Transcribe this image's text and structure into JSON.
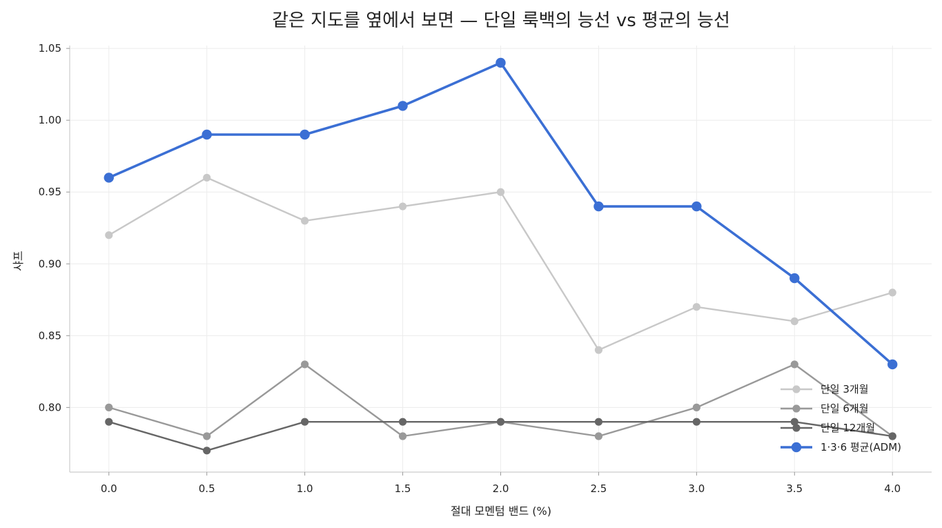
{
  "chart_data": {
    "type": "line",
    "title": "같은 지도를 옆에서 보면 — 단일 룩백의 능선 vs 평균의 능선",
    "xlabel": "절대 모멘텀 밴드 (%)",
    "ylabel": "샤프",
    "x": [
      0.0,
      0.5,
      1.0,
      1.5,
      2.0,
      2.5,
      3.0,
      3.5,
      4.0
    ],
    "x_tick_labels": [
      "0.0",
      "0.5",
      "1.0",
      "1.5",
      "2.0",
      "2.5",
      "3.0",
      "3.5",
      "4.0"
    ],
    "y_ticks": [
      0.8,
      0.85,
      0.9,
      0.95,
      1.0,
      1.05
    ],
    "y_tick_labels": [
      "0.80",
      "0.85",
      "0.90",
      "0.95",
      "1.00",
      "1.05"
    ],
    "xlim": [
      -0.2,
      4.2
    ],
    "ylim": [
      0.755,
      1.052
    ],
    "grid": true,
    "legend_position": "bottom-right",
    "series": [
      {
        "name": "단일 3개월",
        "color": "#c8c8c8",
        "values": [
          0.92,
          0.96,
          0.93,
          0.94,
          0.95,
          0.84,
          0.87,
          0.86,
          0.88
        ]
      },
      {
        "name": "단일 6개월",
        "color": "#999999",
        "values": [
          0.8,
          0.78,
          0.83,
          0.78,
          0.79,
          0.78,
          0.8,
          0.83,
          0.78
        ]
      },
      {
        "name": "단일 12개월",
        "color": "#666666",
        "values": [
          0.79,
          0.77,
          0.79,
          0.79,
          0.79,
          0.79,
          0.79,
          0.79,
          0.78
        ]
      },
      {
        "name": "1·3·6 평균(ADM)",
        "color": "#3b6fd4",
        "values": [
          0.96,
          0.99,
          0.99,
          1.01,
          1.04,
          0.94,
          0.94,
          0.89,
          0.83
        ]
      }
    ]
  }
}
